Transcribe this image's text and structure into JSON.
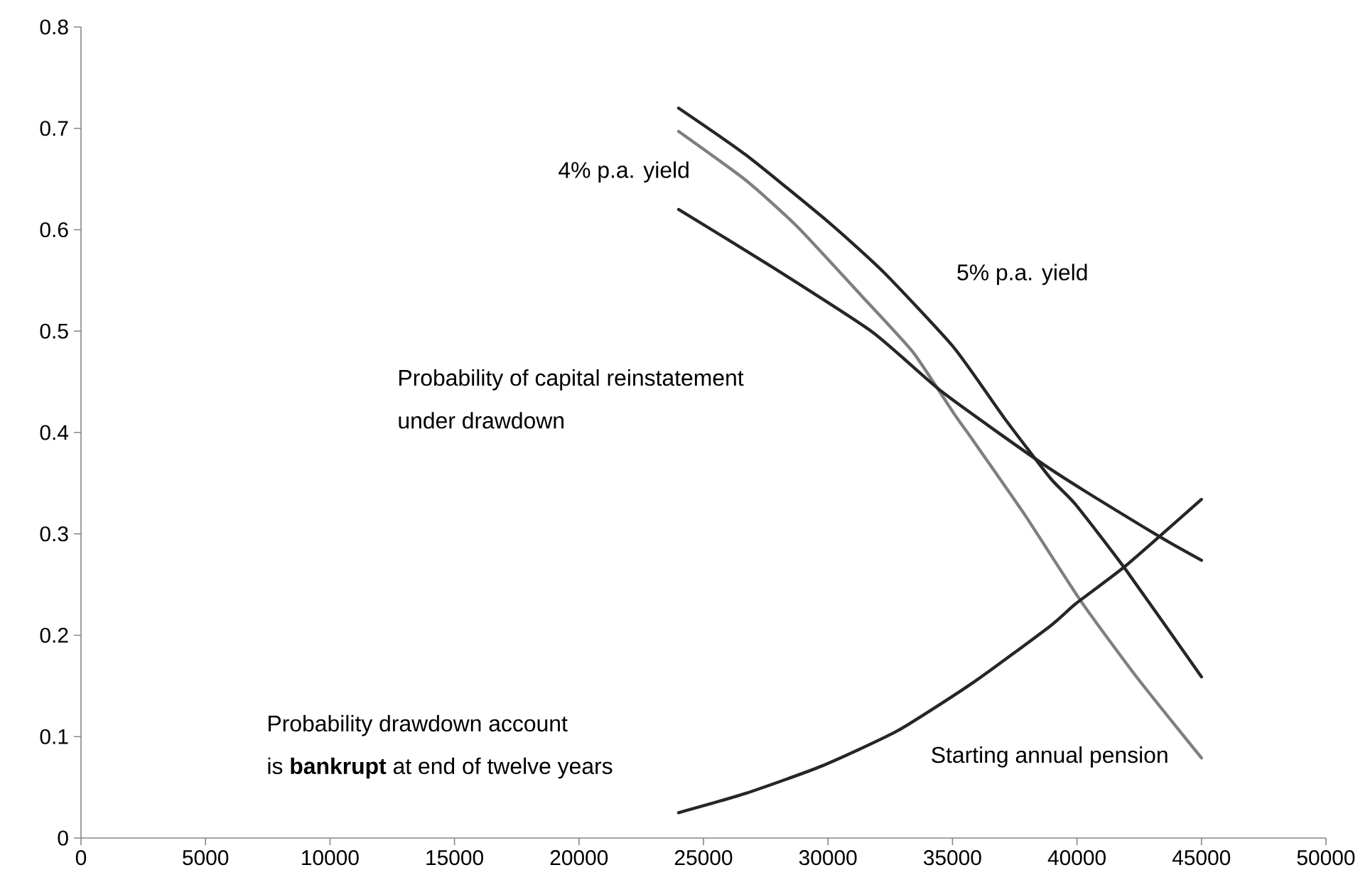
{
  "chart_data": {
    "type": "line",
    "xlabel": "Starting annual pension",
    "xlim": [
      0,
      50000
    ],
    "xticks": [
      0,
      5000,
      10000,
      15000,
      20000,
      25000,
      30000,
      35000,
      40000,
      45000,
      50000
    ],
    "ylim": [
      0,
      0.8
    ],
    "yticks": [
      0,
      0.1,
      0.2,
      0.3,
      0.4,
      0.5,
      0.6,
      0.7,
      0.8
    ],
    "grid": false,
    "legend": false,
    "annotations": [
      "4% p.a. yield",
      "5% p.a. yield",
      "Probability of  capital reinstatement",
      "under drawdown",
      "Probability drawdown account",
      "is **bankrupt** at end of twelve years"
    ],
    "series": [
      {
        "color": "#262626",
        "x": [
          24000,
          26690,
          29950,
          32200,
          35050,
          37090,
          38930,
          39945,
          41980,
          45000
        ],
        "values": [
          0.72,
          0.674,
          0.609,
          0.559,
          0.484,
          0.414,
          0.355,
          0.329,
          0.264,
          0.159
        ]
      },
      {
        "color": "#7f7f7f",
        "x": [
          24000,
          26690,
          28730,
          31380,
          33420,
          35050,
          35660,
          37900,
          40150,
          42390,
          45000
        ],
        "values": [
          0.697,
          0.649,
          0.604,
          0.534,
          0.479,
          0.419,
          0.398,
          0.319,
          0.234,
          0.159,
          0.079
        ]
      },
      {
        "color": "#262626",
        "x": [
          24000,
          27710,
          31790,
          34640,
          38930,
          43200,
          45000
        ],
        "values": [
          0.62,
          0.564,
          0.499,
          0.439,
          0.364,
          0.299,
          0.274
        ]
      },
      {
        "color": "#262626",
        "x": [
          24000,
          26690,
          29750,
          32810,
          35870,
          38920,
          39945,
          41980,
          45000
        ],
        "values": [
          0.025,
          0.044,
          0.071,
          0.106,
          0.154,
          0.209,
          0.231,
          0.269,
          0.334
        ]
      }
    ]
  }
}
